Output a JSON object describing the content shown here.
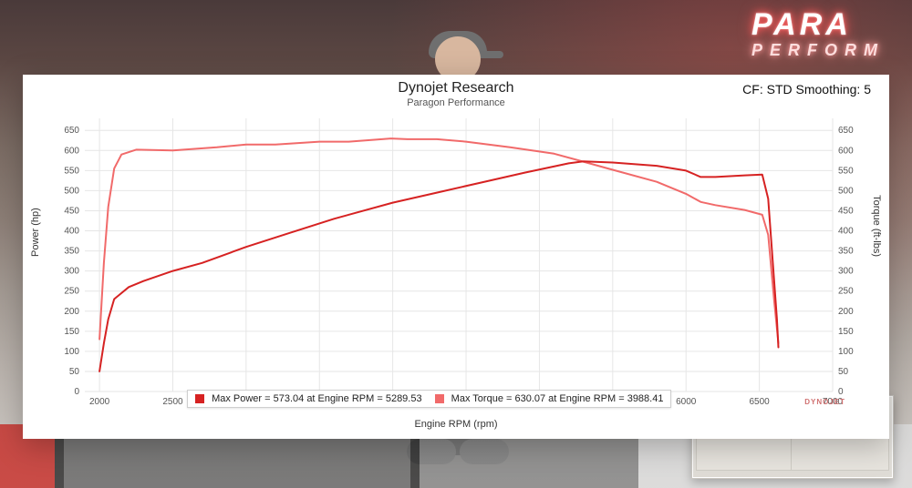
{
  "background": {
    "neon_line1": "PARA",
    "neon_line2": "PERFORM"
  },
  "chart": {
    "type": "line",
    "title": "Dynojet Research",
    "subtitle": "Paragon Performance",
    "top_right_label": "CF: STD Smoothing: 5",
    "watermark": "DYNOJET",
    "title_fontsize": 16,
    "subtitle_fontsize": 11,
    "background_color": "#ffffff",
    "grid_color": "#e6e6e6",
    "line_width": 2,
    "x_axis": {
      "label": "Engine RPM (rpm)",
      "min": 1900,
      "max": 7000,
      "tick_step": 500,
      "ticks": [
        2000,
        2500,
        3000,
        3500,
        4000,
        4500,
        5000,
        5500,
        6000,
        6500,
        7000
      ],
      "label_fontsize": 11
    },
    "y_left": {
      "label": "Power (hp)",
      "min": 0,
      "max": 680,
      "tick_step": 50,
      "ticks": [
        0,
        50,
        100,
        150,
        200,
        250,
        300,
        350,
        400,
        450,
        500,
        550,
        600,
        650
      ],
      "label_fontsize": 11
    },
    "y_right": {
      "label": "Torque (ft-lbs)",
      "min": 0,
      "max": 680,
      "tick_step": 50,
      "ticks": [
        0,
        50,
        100,
        150,
        200,
        250,
        300,
        350,
        400,
        450,
        500,
        550,
        600,
        650
      ]
    },
    "series": {
      "power": {
        "name": "Max Power",
        "color": "#d62222",
        "axis": "left",
        "points": [
          [
            2000,
            50
          ],
          [
            2030,
            120
          ],
          [
            2060,
            180
          ],
          [
            2100,
            230
          ],
          [
            2200,
            260
          ],
          [
            2300,
            275
          ],
          [
            2500,
            300
          ],
          [
            2700,
            320
          ],
          [
            3000,
            360
          ],
          [
            3300,
            395
          ],
          [
            3600,
            430
          ],
          [
            4000,
            470
          ],
          [
            4300,
            495
          ],
          [
            4600,
            520
          ],
          [
            4900,
            545
          ],
          [
            5200,
            568
          ],
          [
            5300,
            573
          ],
          [
            5500,
            570
          ],
          [
            5800,
            562
          ],
          [
            6000,
            550
          ],
          [
            6100,
            534
          ],
          [
            6200,
            534
          ],
          [
            6400,
            538
          ],
          [
            6520,
            540
          ],
          [
            6560,
            480
          ],
          [
            6600,
            280
          ],
          [
            6620,
            180
          ],
          [
            6630,
            110
          ]
        ]
      },
      "torque": {
        "name": "Max Torque",
        "color": "#f16a6a",
        "axis": "right",
        "points": [
          [
            2000,
            130
          ],
          [
            2030,
            320
          ],
          [
            2060,
            460
          ],
          [
            2100,
            555
          ],
          [
            2150,
            590
          ],
          [
            2250,
            602
          ],
          [
            2500,
            600
          ],
          [
            2800,
            608
          ],
          [
            3000,
            615
          ],
          [
            3200,
            615
          ],
          [
            3500,
            622
          ],
          [
            3700,
            622
          ],
          [
            3988,
            630
          ],
          [
            4100,
            628
          ],
          [
            4300,
            628
          ],
          [
            4500,
            622
          ],
          [
            4800,
            608
          ],
          [
            5100,
            592
          ],
          [
            5300,
            572
          ],
          [
            5500,
            552
          ],
          [
            5800,
            522
          ],
          [
            6000,
            492
          ],
          [
            6100,
            472
          ],
          [
            6200,
            464
          ],
          [
            6400,
            452
          ],
          [
            6520,
            440
          ],
          [
            6560,
            390
          ],
          [
            6600,
            230
          ],
          [
            6630,
            120
          ]
        ]
      }
    },
    "legend": {
      "entries": [
        {
          "series": "power",
          "color": "#d62222",
          "text": "Max Power = 573.04 at Engine RPM = 5289.53"
        },
        {
          "series": "torque",
          "color": "#f16a6a",
          "text": "Max Torque = 630.07 at Engine RPM = 3988.41"
        }
      ]
    }
  }
}
